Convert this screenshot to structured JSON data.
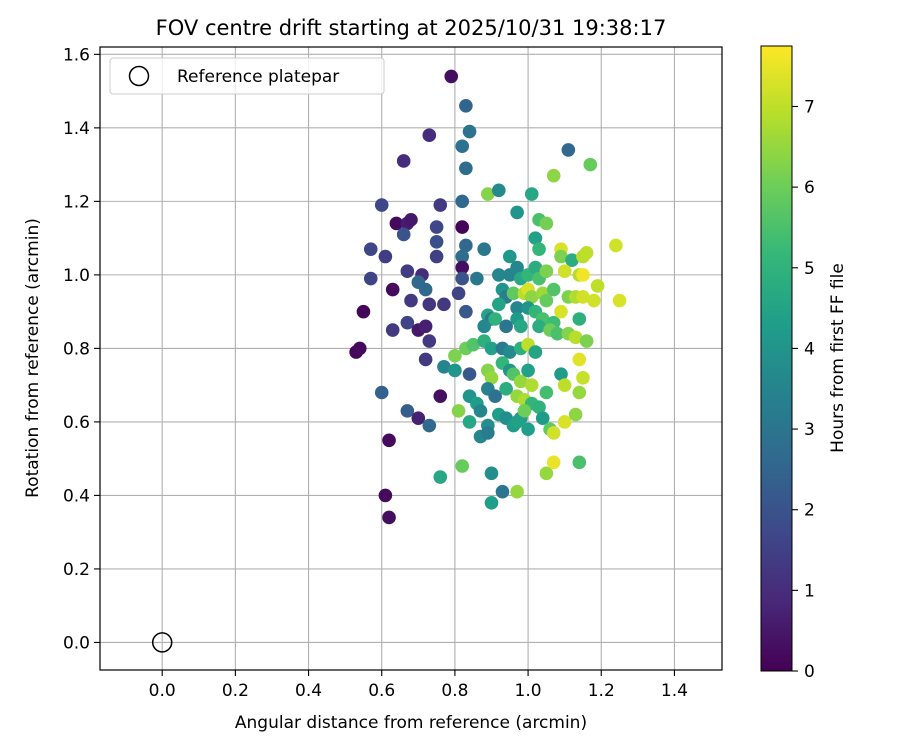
{
  "chart_data": {
    "type": "scatter",
    "title": "FOV centre drift starting at 2025/10/31 19:38:17",
    "xlabel": "Angular distance from reference (arcmin)",
    "ylabel": "Rotation from reference (arcmin)",
    "xlim": [
      -0.17,
      1.53
    ],
    "ylim": [
      -0.075,
      1.62
    ],
    "xticks": [
      "0.0",
      "0.2",
      "0.4",
      "0.6",
      "0.8",
      "1.0",
      "1.2",
      "1.4"
    ],
    "yticks": [
      "0.0",
      "0.2",
      "0.4",
      "0.6",
      "0.8",
      "1.0",
      "1.2",
      "1.4",
      "1.6"
    ],
    "grid": true,
    "legend": {
      "position": "top-left",
      "entries": [
        {
          "label": "Reference platepar",
          "marker": "open-circle"
        }
      ]
    },
    "reference_point": {
      "x": 0.0,
      "y": 0.0
    },
    "colorbar": {
      "label": "Hours from first FF file",
      "min": 0,
      "max": 7.75,
      "ticks": [
        "0",
        "1",
        "2",
        "3",
        "4",
        "5",
        "6",
        "7"
      ],
      "colormap": "viridis"
    },
    "colormap_stops": [
      "#440154",
      "#482878",
      "#3e4989",
      "#31688e",
      "#26828e",
      "#1f9e89",
      "#35b779",
      "#6ece58",
      "#b5de2b",
      "#fde725"
    ],
    "points": [
      [
        0.79,
        1.54,
        0.3
      ],
      [
        0.83,
        1.46,
        2.5
      ],
      [
        0.84,
        1.39,
        2.9
      ],
      [
        0.73,
        1.38,
        1.0
      ],
      [
        0.66,
        1.31,
        1.0
      ],
      [
        0.82,
        1.35,
        2.9
      ],
      [
        1.11,
        1.34,
        2.6
      ],
      [
        1.17,
        1.3,
        5.9
      ],
      [
        0.83,
        1.29,
        2.7
      ],
      [
        0.89,
        1.22,
        6.3
      ],
      [
        0.92,
        1.23,
        3.7
      ],
      [
        1.01,
        1.22,
        4.6
      ],
      [
        1.07,
        1.27,
        6.4
      ],
      [
        0.6,
        1.19,
        1.7
      ],
      [
        0.76,
        1.19,
        1.3
      ],
      [
        0.82,
        1.2,
        2.6
      ],
      [
        0.97,
        1.17,
        4.0
      ],
      [
        1.03,
        1.15,
        5.5
      ],
      [
        1.05,
        1.14,
        6.1
      ],
      [
        0.64,
        1.14,
        0.2
      ],
      [
        0.67,
        1.14,
        0.6
      ],
      [
        0.68,
        1.15,
        0.5
      ],
      [
        0.75,
        1.13,
        1.7
      ],
      [
        0.82,
        1.13,
        0.1
      ],
      [
        0.66,
        1.11,
        2.0
      ],
      [
        0.57,
        1.07,
        1.7
      ],
      [
        0.61,
        1.05,
        1.4
      ],
      [
        0.75,
        1.09,
        1.9
      ],
      [
        0.83,
        1.08,
        2.6
      ],
      [
        0.82,
        1.05,
        2.7
      ],
      [
        0.88,
        1.07,
        3.1
      ],
      [
        0.95,
        1.05,
        4.1
      ],
      [
        1.02,
        1.1,
        4.4
      ],
      [
        1.03,
        1.07,
        5.1
      ],
      [
        1.09,
        1.07,
        7.3
      ],
      [
        1.09,
        1.05,
        6.2
      ],
      [
        1.12,
        1.04,
        4.8
      ],
      [
        1.15,
        1.05,
        6.9
      ],
      [
        1.16,
        1.06,
        7.0
      ],
      [
        1.24,
        1.08,
        7.2
      ],
      [
        0.67,
        1.01,
        1.4
      ],
      [
        0.71,
        1.0,
        1.0
      ],
      [
        0.75,
        1.05,
        1.5
      ],
      [
        0.82,
        1.02,
        0.3
      ],
      [
        0.82,
        0.99,
        2.0
      ],
      [
        0.86,
        0.99,
        3.1
      ],
      [
        0.92,
        1.0,
        3.6
      ],
      [
        0.93,
        0.96,
        4.0
      ],
      [
        0.95,
        1.0,
        3.5
      ],
      [
        0.97,
        1.02,
        3.6
      ],
      [
        0.98,
        0.99,
        4.6
      ],
      [
        1.0,
        1.0,
        5.1
      ],
      [
        1.02,
        1.02,
        4.8
      ],
      [
        1.03,
        0.99,
        5.5
      ],
      [
        1.05,
        1.01,
        6.2
      ],
      [
        1.1,
        1.01,
        7.2
      ],
      [
        1.14,
        1.0,
        6.9
      ],
      [
        1.15,
        1.0,
        7.6
      ],
      [
        1.19,
        0.97,
        7.0
      ],
      [
        0.57,
        0.99,
        1.6
      ],
      [
        0.63,
        0.96,
        0.2
      ],
      [
        0.7,
        0.98,
        2.6
      ],
      [
        0.72,
        0.96,
        2.6
      ],
      [
        0.81,
        0.95,
        1.6
      ],
      [
        0.94,
        0.94,
        3.3
      ],
      [
        0.96,
        0.95,
        5.8
      ],
      [
        0.99,
        0.95,
        6.9
      ],
      [
        1.0,
        0.96,
        7.3
      ],
      [
        1.01,
        0.94,
        6.4
      ],
      [
        1.04,
        0.95,
        6.6
      ],
      [
        1.05,
        0.93,
        5.9
      ],
      [
        1.07,
        0.96,
        5.6
      ],
      [
        1.11,
        0.94,
        6.2
      ],
      [
        1.13,
        0.94,
        6.8
      ],
      [
        1.15,
        0.94,
        7.2
      ],
      [
        1.18,
        0.93,
        7.2
      ],
      [
        1.25,
        0.93,
        7.3
      ],
      [
        0.68,
        0.93,
        1.3
      ],
      [
        0.73,
        0.92,
        1.2
      ],
      [
        0.77,
        0.92,
        1.3
      ],
      [
        0.83,
        0.9,
        2.1
      ],
      [
        0.89,
        0.89,
        4.5
      ],
      [
        0.9,
        0.88,
        3.0
      ],
      [
        0.92,
        0.92,
        4.5
      ],
      [
        0.97,
        0.91,
        3.6
      ],
      [
        1.0,
        0.91,
        4.0
      ],
      [
        1.02,
        0.9,
        5.1
      ],
      [
        1.04,
        0.88,
        5.5
      ],
      [
        1.07,
        0.87,
        5.3
      ],
      [
        1.09,
        0.9,
        7.3
      ],
      [
        1.14,
        0.88,
        4.9
      ],
      [
        0.55,
        0.9,
        0.1
      ],
      [
        0.63,
        0.85,
        1.3
      ],
      [
        0.67,
        0.87,
        1.6
      ],
      [
        0.7,
        0.85,
        0.5
      ],
      [
        0.72,
        0.86,
        0.7
      ],
      [
        0.88,
        0.86,
        3.6
      ],
      [
        0.91,
        0.88,
        5.0
      ],
      [
        0.94,
        0.86,
        3.0
      ],
      [
        0.97,
        0.88,
        4.2
      ],
      [
        0.98,
        0.86,
        4.6
      ],
      [
        1.03,
        0.86,
        4.8
      ],
      [
        1.06,
        0.85,
        6.0
      ],
      [
        1.08,
        0.84,
        5.5
      ],
      [
        1.11,
        0.84,
        6.3
      ],
      [
        1.13,
        0.83,
        6.9
      ],
      [
        1.16,
        0.82,
        6.2
      ],
      [
        0.73,
        0.82,
        1.3
      ],
      [
        0.53,
        0.79,
        0.1
      ],
      [
        0.54,
        0.8,
        0.2
      ],
      [
        0.8,
        0.78,
        6.2
      ],
      [
        0.83,
        0.8,
        6.0
      ],
      [
        0.85,
        0.81,
        5.6
      ],
      [
        0.88,
        0.82,
        4.9
      ],
      [
        0.9,
        0.8,
        4.4
      ],
      [
        0.93,
        0.8,
        3.2
      ],
      [
        0.95,
        0.79,
        3.7
      ],
      [
        0.98,
        0.8,
        4.9
      ],
      [
        1.0,
        0.81,
        7.0
      ],
      [
        1.02,
        0.79,
        4.5
      ],
      [
        1.14,
        0.77,
        7.4
      ],
      [
        0.72,
        0.77,
        1.3
      ],
      [
        0.77,
        0.75,
        3.5
      ],
      [
        0.8,
        0.74,
        4.0
      ],
      [
        0.84,
        0.73,
        2.1
      ],
      [
        0.89,
        0.74,
        6.3
      ],
      [
        0.9,
        0.72,
        6.5
      ],
      [
        0.93,
        0.76,
        5.1
      ],
      [
        0.95,
        0.74,
        4.0
      ],
      [
        0.96,
        0.73,
        5.6
      ],
      [
        0.98,
        0.71,
        6.5
      ],
      [
        1.0,
        0.74,
        4.4
      ],
      [
        1.01,
        0.7,
        6.8
      ],
      [
        1.05,
        0.68,
        5.4
      ],
      [
        1.09,
        0.73,
        4.2
      ],
      [
        1.1,
        0.7,
        7.0
      ],
      [
        1.15,
        0.72,
        7.1
      ],
      [
        0.6,
        0.68,
        2.4
      ],
      [
        0.76,
        0.67,
        0.3
      ],
      [
        0.84,
        0.67,
        4.0
      ],
      [
        0.86,
        0.65,
        4.3
      ],
      [
        0.89,
        0.69,
        3.4
      ],
      [
        0.91,
        0.67,
        2.9
      ],
      [
        0.94,
        0.69,
        4.8
      ],
      [
        0.97,
        0.67,
        6.5
      ],
      [
        0.99,
        0.66,
        6.8
      ],
      [
        1.01,
        0.65,
        5.1
      ],
      [
        1.03,
        0.64,
        5.0
      ],
      [
        1.14,
        0.68,
        6.5
      ],
      [
        0.67,
        0.63,
        2.3
      ],
      [
        0.7,
        0.61,
        0.7
      ],
      [
        0.73,
        0.59,
        2.6
      ],
      [
        0.81,
        0.63,
        6.3
      ],
      [
        0.84,
        0.6,
        4.6
      ],
      [
        0.87,
        0.63,
        3.6
      ],
      [
        0.89,
        0.59,
        3.8
      ],
      [
        0.92,
        0.62,
        4.3
      ],
      [
        0.94,
        0.61,
        3.8
      ],
      [
        0.96,
        0.59,
        4.2
      ],
      [
        0.98,
        0.61,
        4.3
      ],
      [
        0.99,
        0.63,
        6.0
      ],
      [
        1.0,
        0.58,
        4.3
      ],
      [
        1.04,
        0.61,
        4.2
      ],
      [
        1.06,
        0.58,
        5.8
      ],
      [
        1.07,
        0.57,
        7.2
      ],
      [
        1.1,
        0.6,
        7.3
      ],
      [
        1.13,
        0.62,
        6.4
      ],
      [
        0.62,
        0.55,
        0.2
      ],
      [
        0.87,
        0.56,
        3.6
      ],
      [
        0.89,
        0.57,
        3.2
      ],
      [
        0.97,
        0.6,
        4.4
      ],
      [
        1.05,
        0.46,
        6.5
      ],
      [
        1.07,
        0.49,
        7.5
      ],
      [
        1.14,
        0.49,
        5.5
      ],
      [
        0.76,
        0.45,
        4.6
      ],
      [
        0.82,
        0.48,
        5.9
      ],
      [
        0.9,
        0.46,
        3.8
      ],
      [
        0.61,
        0.4,
        0.2
      ],
      [
        0.62,
        0.34,
        0.3
      ],
      [
        0.9,
        0.38,
        4.3
      ],
      [
        0.93,
        0.41,
        3.0
      ],
      [
        0.97,
        0.41,
        6.5
      ]
    ]
  }
}
